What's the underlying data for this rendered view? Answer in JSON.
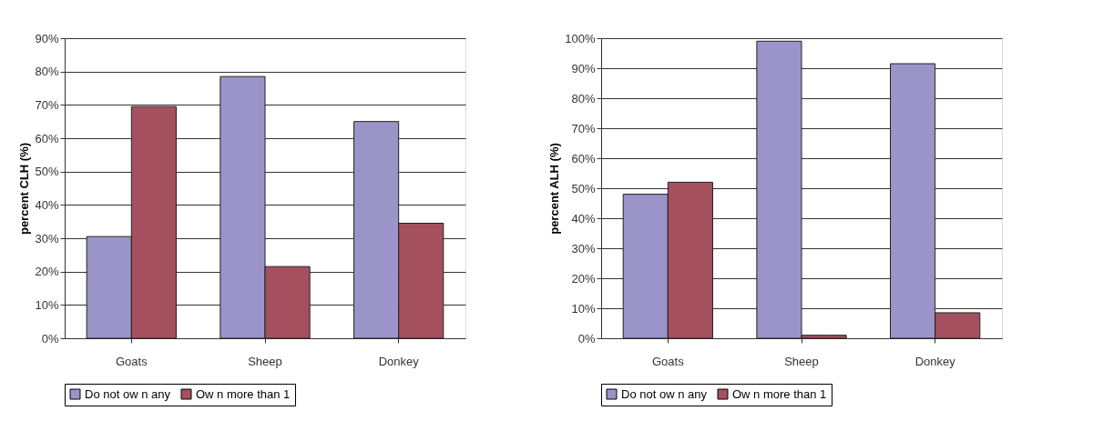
{
  "chart_data": [
    {
      "type": "bar",
      "ylabel": "percent CLH (%)",
      "categories": [
        "Goats",
        "Sheep",
        "Donkey"
      ],
      "series": [
        {
          "name": "Do not ow n any",
          "color": "#9a94c8",
          "values": [
            30.5,
            78.5,
            65
          ]
        },
        {
          "name": "Ow n more than 1",
          "color": "#a5505e",
          "values": [
            69.5,
            21.5,
            34.5
          ]
        }
      ],
      "ylim": [
        0,
        90
      ],
      "yticks": [
        {
          "value": 0,
          "label": "0%"
        },
        {
          "value": 10,
          "label": "10%"
        },
        {
          "value": 20,
          "label": "20%"
        },
        {
          "value": 30,
          "label": "30%"
        },
        {
          "value": 40,
          "label": "40%"
        },
        {
          "value": 50,
          "label": "50%"
        },
        {
          "value": 60,
          "label": "60%"
        },
        {
          "value": 70,
          "label": "70%"
        },
        {
          "value": 80,
          "label": "80%"
        },
        {
          "value": 90,
          "label": "90%"
        }
      ],
      "grid": "y",
      "legend": "bottom"
    },
    {
      "type": "bar",
      "ylabel": "percent ALH (%)",
      "categories": [
        "Goats",
        "Sheep",
        "Donkey"
      ],
      "series": [
        {
          "name": "Do not ow n any",
          "color": "#9a94c8",
          "values": [
            48,
            99,
            91.5
          ]
        },
        {
          "name": "Ow n more than 1",
          "color": "#a5505e",
          "values": [
            52,
            1,
            8.5
          ]
        }
      ],
      "ylim": [
        0,
        100
      ],
      "yticks": [
        {
          "value": 0,
          "label": "0%"
        },
        {
          "value": 10,
          "label": "10%"
        },
        {
          "value": 20,
          "label": "20%"
        },
        {
          "value": 30,
          "label": "30%"
        },
        {
          "value": 40,
          "label": "40%"
        },
        {
          "value": 50,
          "label": "50%"
        },
        {
          "value": 60,
          "label": "60%"
        },
        {
          "value": 70,
          "label": "70%"
        },
        {
          "value": 80,
          "label": "80%"
        },
        {
          "value": 90,
          "label": "90%"
        },
        {
          "value": 100,
          "label": "100%"
        }
      ],
      "grid": "y",
      "legend": "bottom"
    }
  ]
}
